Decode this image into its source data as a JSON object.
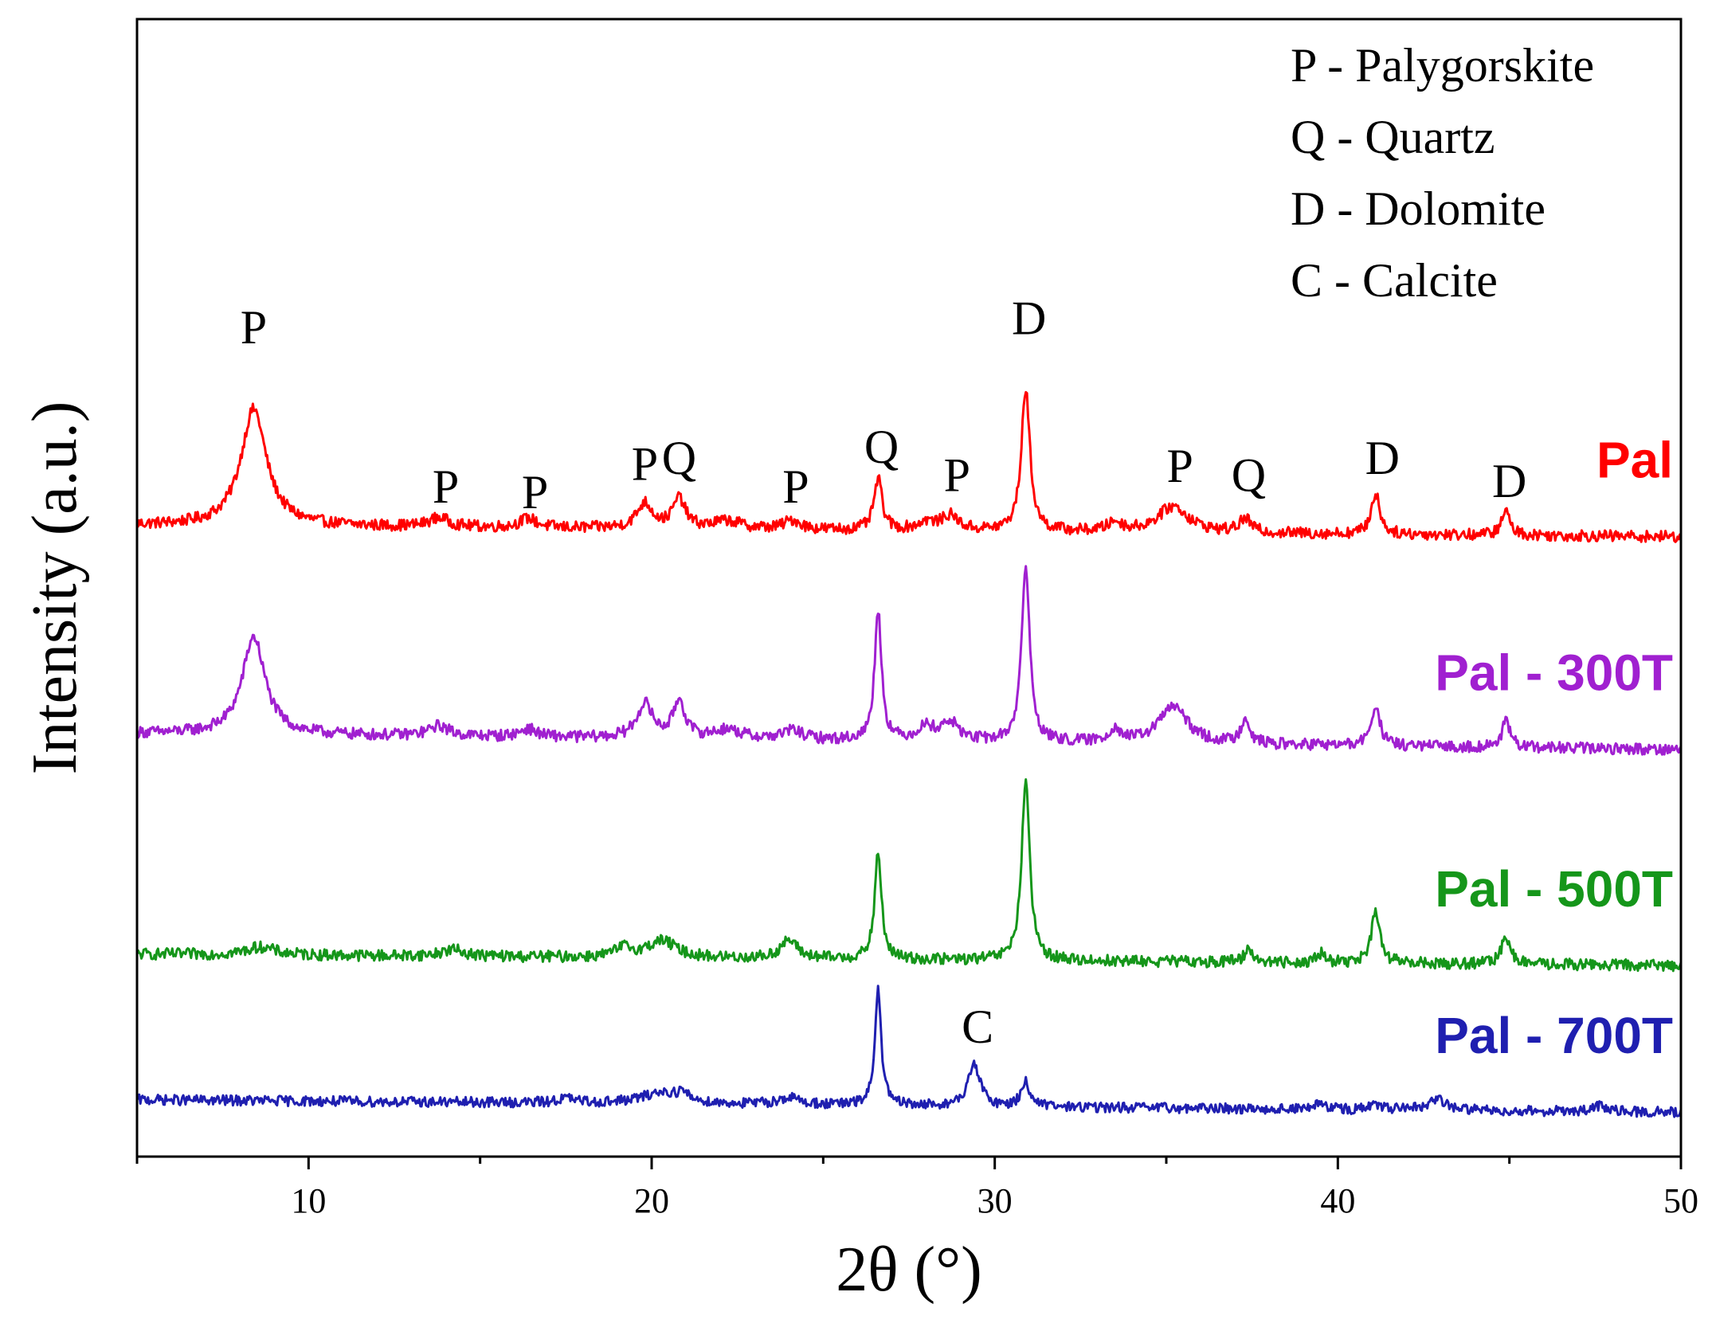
{
  "chart_data": {
    "type": "line",
    "title": "",
    "xlabel": "2θ (°)",
    "ylabel": "Intensity (a.u.)",
    "xlim": [
      5,
      50
    ],
    "ylim": [
      0,
      100
    ],
    "xticks": [
      10,
      20,
      30,
      40,
      50
    ],
    "yticks_shown": false,
    "grid": false,
    "legend_position": "top-right",
    "legend": [
      "P - Palygorskite",
      "Q - Quartz",
      "D - Dolomite",
      "C - Calcite"
    ],
    "series": [
      {
        "name": "Pal",
        "color": "#ff0000",
        "baseline": 55.5,
        "baseline_end": 54.5,
        "noise": 0.5,
        "peaks": [
          {
            "x": 8.4,
            "h": 10.3,
            "w": 0.45
          },
          {
            "x": 13.8,
            "h": 0.8,
            "w": 0.35
          },
          {
            "x": 16.4,
            "h": 0.8,
            "w": 0.3
          },
          {
            "x": 19.8,
            "h": 2.2,
            "w": 0.28
          },
          {
            "x": 20.8,
            "h": 2.6,
            "w": 0.22
          },
          {
            "x": 22.2,
            "h": 0.7,
            "w": 0.5
          },
          {
            "x": 24.1,
            "h": 0.8,
            "w": 0.3
          },
          {
            "x": 26.6,
            "h": 4.5,
            "w": 0.14
          },
          {
            "x": 28.0,
            "h": 0.7,
            "w": 0.3
          },
          {
            "x": 28.7,
            "h": 1.3,
            "w": 0.3
          },
          {
            "x": 30.9,
            "h": 12.5,
            "w": 0.15
          },
          {
            "x": 33.5,
            "h": 0.8,
            "w": 0.25
          },
          {
            "x": 35.2,
            "h": 2.3,
            "w": 0.55
          },
          {
            "x": 37.3,
            "h": 1.2,
            "w": 0.2
          },
          {
            "x": 41.1,
            "h": 3.6,
            "w": 0.15
          },
          {
            "x": 44.9,
            "h": 2.1,
            "w": 0.15
          }
        ]
      },
      {
        "name": "Pal - 300T",
        "color": "#a020d0",
        "baseline": 37.2,
        "baseline_end": 35.8,
        "noise": 0.5,
        "peaks": [
          {
            "x": 8.4,
            "h": 8.6,
            "w": 0.4
          },
          {
            "x": 13.8,
            "h": 0.9,
            "w": 0.35
          },
          {
            "x": 16.4,
            "h": 0.7,
            "w": 0.3
          },
          {
            "x": 19.8,
            "h": 3.0,
            "w": 0.28
          },
          {
            "x": 20.8,
            "h": 3.3,
            "w": 0.2
          },
          {
            "x": 22.2,
            "h": 0.8,
            "w": 0.5
          },
          {
            "x": 24.1,
            "h": 0.8,
            "w": 0.35
          },
          {
            "x": 26.6,
            "h": 11.5,
            "w": 0.12
          },
          {
            "x": 28.0,
            "h": 1.2,
            "w": 0.3
          },
          {
            "x": 28.7,
            "h": 1.6,
            "w": 0.3
          },
          {
            "x": 30.9,
            "h": 15.5,
            "w": 0.14
          },
          {
            "x": 33.5,
            "h": 1.2,
            "w": 0.2
          },
          {
            "x": 35.2,
            "h": 3.3,
            "w": 0.5
          },
          {
            "x": 37.3,
            "h": 2.3,
            "w": 0.15
          },
          {
            "x": 41.1,
            "h": 3.6,
            "w": 0.15
          },
          {
            "x": 44.9,
            "h": 2.2,
            "w": 0.15
          }
        ]
      },
      {
        "name": "Pal - 500T",
        "color": "#15961a",
        "baseline": 17.8,
        "baseline_end": 16.8,
        "noise": 0.5,
        "peaks": [
          {
            "x": 8.6,
            "h": 0.7,
            "w": 0.5
          },
          {
            "x": 14.2,
            "h": 0.6,
            "w": 0.4
          },
          {
            "x": 19.2,
            "h": 0.8,
            "w": 0.3
          },
          {
            "x": 20.3,
            "h": 1.5,
            "w": 0.5
          },
          {
            "x": 24.0,
            "h": 1.6,
            "w": 0.3
          },
          {
            "x": 26.6,
            "h": 9.3,
            "w": 0.12
          },
          {
            "x": 30.9,
            "h": 15.8,
            "w": 0.14
          },
          {
            "x": 37.4,
            "h": 1.2,
            "w": 0.15
          },
          {
            "x": 39.5,
            "h": 0.8,
            "w": 0.15
          },
          {
            "x": 41.1,
            "h": 4.4,
            "w": 0.15
          },
          {
            "x": 44.9,
            "h": 2.5,
            "w": 0.15
          }
        ]
      },
      {
        "name": "Pal - 700T",
        "color": "#1f1fb0",
        "baseline": 5.0,
        "baseline_end": 3.9,
        "noise": 0.45,
        "peaks": [
          {
            "x": 17.5,
            "h": 0.4,
            "w": 0.3
          },
          {
            "x": 20.3,
            "h": 1.0,
            "w": 0.7
          },
          {
            "x": 20.9,
            "h": 0.6,
            "w": 0.2
          },
          {
            "x": 24.0,
            "h": 0.6,
            "w": 0.4
          },
          {
            "x": 26.6,
            "h": 10.2,
            "w": 0.11
          },
          {
            "x": 29.4,
            "h": 3.8,
            "w": 0.2
          },
          {
            "x": 30.9,
            "h": 2.2,
            "w": 0.15
          },
          {
            "x": 39.5,
            "h": 0.6,
            "w": 0.15
          },
          {
            "x": 41.1,
            "h": 0.5,
            "w": 0.15
          },
          {
            "x": 42.9,
            "h": 0.9,
            "w": 0.35
          },
          {
            "x": 47.6,
            "h": 0.5,
            "w": 0.2
          }
        ]
      }
    ],
    "annotations": [
      {
        "text": "P",
        "x": 8.4,
        "y": 71.5
      },
      {
        "text": "P",
        "x": 14.0,
        "y": 57.5
      },
      {
        "text": "P",
        "x": 16.6,
        "y": 57.0
      },
      {
        "text": "P",
        "x": 19.8,
        "y": 59.5
      },
      {
        "text": "Q",
        "x": 20.8,
        "y": 60.0
      },
      {
        "text": "P",
        "x": 24.2,
        "y": 57.5
      },
      {
        "text": "Q",
        "x": 26.7,
        "y": 61.0
      },
      {
        "text": "P",
        "x": 28.9,
        "y": 58.5
      },
      {
        "text": "D",
        "x": 31.0,
        "y": 72.3
      },
      {
        "text": "P",
        "x": 35.4,
        "y": 59.3
      },
      {
        "text": "Q",
        "x": 37.4,
        "y": 58.5
      },
      {
        "text": "D",
        "x": 41.3,
        "y": 60.0
      },
      {
        "text": "D",
        "x": 45.0,
        "y": 58.0
      },
      {
        "text": "C",
        "x": 29.5,
        "y": 10.0
      }
    ]
  }
}
